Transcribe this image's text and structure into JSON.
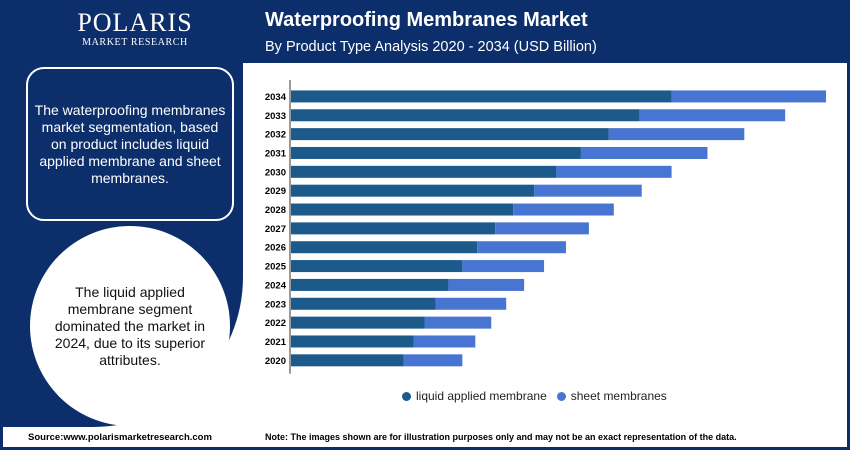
{
  "brand": {
    "name": "POLARIS",
    "tagline": "MARKET RESEARCH"
  },
  "header": {
    "title": "Waterproofing Membranes Market",
    "subtitle": "By Product Type Analysis 2020 - 2034 (USD Billion)"
  },
  "left_panel": {
    "box_text": "The waterproofing membranes market segmentation, based on product includes liquid applied membrane and sheet membranes.",
    "circle_text": "The liquid applied membrane segment dominated the market in 2024, due to its superior attributes."
  },
  "colors": {
    "navy": "#0c2f6b",
    "liquid": "#1d5a8c",
    "sheet": "#4775d1"
  },
  "chart_data": {
    "type": "bar",
    "orientation": "horizontal",
    "stacked": true,
    "categories": [
      "2034",
      "2033",
      "2032",
      "2031",
      "2030",
      "2029",
      "2028",
      "2027",
      "2026",
      "2025",
      "2024",
      "2023",
      "2022",
      "2021",
      "2020"
    ],
    "series": [
      {
        "name": "liquid applied membrane",
        "color": "#1d5a8c",
        "values": [
          38.2,
          35.0,
          31.9,
          29.1,
          26.6,
          24.4,
          22.3,
          20.5,
          18.7,
          17.2,
          15.8,
          14.5,
          13.4,
          12.3,
          11.3
        ]
      },
      {
        "name": "sheet membranes",
        "color": "#4775d1",
        "values": [
          15.5,
          14.6,
          13.6,
          12.7,
          11.6,
          10.8,
          10.1,
          9.4,
          8.9,
          8.2,
          7.6,
          7.1,
          6.7,
          6.2,
          5.9
        ]
      }
    ],
    "xlim": [
      0,
      54
    ],
    "grid": false,
    "legend_position": "bottom"
  },
  "footer": {
    "source": "Source:www.polarismarketresearch.com",
    "note": "Note: The images shown are for illustration purposes only and may not be an exact representation of the data."
  }
}
